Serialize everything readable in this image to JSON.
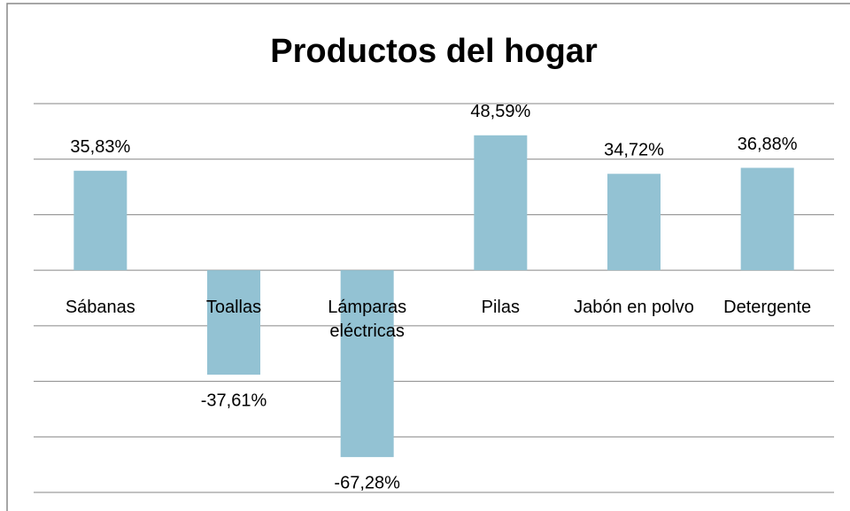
{
  "chart_data": {
    "type": "bar",
    "title": "Productos del hogar",
    "categories": [
      "Sábanas",
      "Toallas",
      "Lámparas eléctricas",
      "Pilas",
      "Jabón en polvo",
      "Detergente"
    ],
    "values": [
      35.83,
      -37.61,
      -67.28,
      48.59,
      34.72,
      36.88
    ],
    "value_labels": [
      "35,83%",
      "-37,61%",
      "-67,28%",
      "48,59%",
      "34,72%",
      "36,88%"
    ],
    "color": "#93c2d3",
    "ylim": [
      -80,
      60
    ],
    "yticks": [
      -80,
      -60,
      -40,
      -20,
      0,
      20,
      40,
      60
    ],
    "grid": true
  }
}
